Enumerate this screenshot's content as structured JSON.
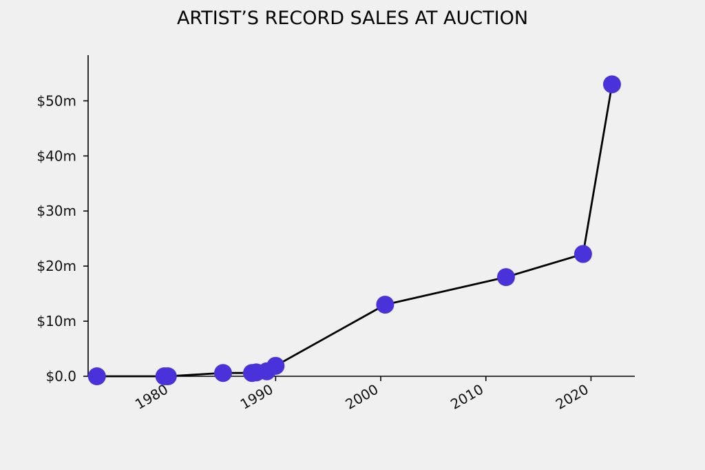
{
  "chart_data": {
    "type": "line",
    "title": "ARTIST’S RECORD SALES AT AUCTION",
    "xlabel": "",
    "ylabel": "",
    "x_axis_type": "date",
    "x_ticks": [
      {
        "value": "1980-01-01",
        "label": "1980"
      },
      {
        "value": "1990-01-01",
        "label": "1990"
      },
      {
        "value": "2000-01-01",
        "label": "2000"
      },
      {
        "value": "2010-01-01",
        "label": "2010"
      },
      {
        "value": "2020-01-01",
        "label": "2020"
      }
    ],
    "y_ticks": [
      {
        "value": 0,
        "label": "$0.0"
      },
      {
        "value": 10,
        "label": "$10m"
      },
      {
        "value": 20,
        "label": "$20m"
      },
      {
        "value": 30,
        "label": "$30m"
      },
      {
        "value": 40,
        "label": "$40m"
      },
      {
        "value": 50,
        "label": "$50m"
      }
    ],
    "y_unit": "$m",
    "xlim": [
      "1972-03-01",
      "2024-03-01"
    ],
    "ylim": [
      0,
      58.3
    ],
    "grid": false,
    "legend": "none",
    "series": [
      {
        "points": [
          {
            "x": "1973-01-01",
            "y": 0.0
          },
          {
            "x": "1979-06-01",
            "y": 0.0
          },
          {
            "x": "1979-10-01",
            "y": 0.0
          },
          {
            "x": "1985-01-01",
            "y": 0.6
          },
          {
            "x": "1987-10-01",
            "y": 0.6
          },
          {
            "x": "1988-03-01",
            "y": 0.7
          },
          {
            "x": "1989-03-01",
            "y": 0.9
          },
          {
            "x": "1990-01-01",
            "y": 1.9
          },
          {
            "x": "2000-06-01",
            "y": 13.0
          },
          {
            "x": "2011-12-01",
            "y": 18.0
          },
          {
            "x": "2019-04-01",
            "y": 22.2
          },
          {
            "x": "2022-01-01",
            "y": 53.0
          }
        ]
      }
    ],
    "colors": {
      "background": "#f0f0f0",
      "line": "#000000",
      "marker": "#4a32db",
      "axis": "#000000"
    }
  }
}
